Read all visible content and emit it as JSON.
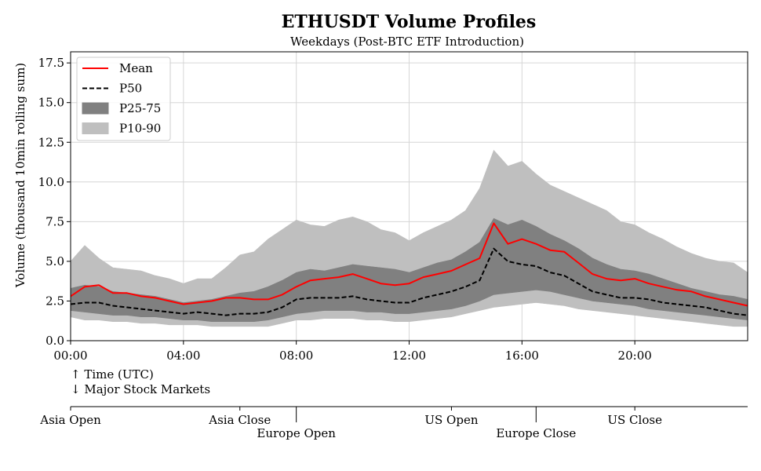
{
  "chart_data": {
    "type": "area",
    "title": "ETHUSDT Volume Profiles",
    "subtitle": "Weekdays (Post-BTC ETF Introduction)",
    "ylabel": "Volume (thousand 10min rolling sum)",
    "xlim": [
      0,
      24
    ],
    "ylim": [
      0,
      18.2
    ],
    "grid": true,
    "legend_placement": "top-left",
    "x_ticks": [
      {
        "x": 0,
        "label": "00:00"
      },
      {
        "x": 4,
        "label": "04:00"
      },
      {
        "x": 8,
        "label": "08:00"
      },
      {
        "x": 12,
        "label": "12:00"
      },
      {
        "x": 16,
        "label": "16:00"
      },
      {
        "x": 20,
        "label": "20:00"
      }
    ],
    "y_ticks": [
      {
        "y": 0,
        "label": "0.0"
      },
      {
        "y": 2.5,
        "label": "2.5"
      },
      {
        "y": 5,
        "label": "5.0"
      },
      {
        "y": 7.5,
        "label": "7.5"
      },
      {
        "y": 10,
        "label": "10.0"
      },
      {
        "y": 12.5,
        "label": "12.5"
      },
      {
        "y": 15,
        "label": "15.0"
      },
      {
        "y": 17.5,
        "label": "17.5"
      }
    ],
    "x_hours": [
      0,
      0.5,
      1,
      1.5,
      2,
      2.5,
      3,
      3.5,
      4,
      4.5,
      5,
      5.5,
      6,
      6.5,
      7,
      7.5,
      8,
      8.5,
      9,
      9.5,
      10,
      10.5,
      11,
      11.5,
      12,
      12.5,
      13,
      13.5,
      14,
      14.5,
      15,
      15.5,
      16,
      16.5,
      17,
      17.5,
      18,
      18.5,
      19,
      19.5,
      20,
      20.5,
      21,
      21.5,
      22,
      22.5,
      23,
      23.5,
      24
    ],
    "series": [
      {
        "name": "P10-90",
        "kind": "band",
        "color": "#bfbfbf",
        "lower": [
          1.5,
          1.3,
          1.3,
          1.2,
          1.2,
          1.1,
          1.1,
          1.0,
          1.0,
          1.0,
          0.9,
          0.9,
          0.9,
          0.9,
          0.9,
          1.1,
          1.3,
          1.3,
          1.4,
          1.4,
          1.4,
          1.3,
          1.3,
          1.2,
          1.2,
          1.3,
          1.4,
          1.5,
          1.7,
          1.9,
          2.1,
          2.2,
          2.3,
          2.4,
          2.3,
          2.2,
          2.0,
          1.9,
          1.8,
          1.7,
          1.6,
          1.5,
          1.4,
          1.3,
          1.2,
          1.1,
          1.0,
          0.9,
          0.9
        ],
        "upper": [
          5.0,
          6.0,
          5.2,
          4.6,
          4.5,
          4.4,
          4.1,
          3.9,
          3.6,
          3.9,
          3.9,
          4.6,
          5.4,
          5.6,
          6.4,
          7.0,
          7.6,
          7.3,
          7.2,
          7.6,
          7.8,
          7.5,
          7.0,
          6.8,
          6.3,
          6.8,
          7.2,
          7.6,
          8.2,
          9.6,
          12.0,
          11.0,
          11.3,
          10.5,
          9.8,
          9.4,
          9.0,
          8.6,
          8.2,
          7.5,
          7.3,
          6.8,
          6.4,
          5.9,
          5.5,
          5.2,
          5.0,
          4.9,
          4.3
        ]
      },
      {
        "name": "P25-75",
        "kind": "band",
        "color": "#808080",
        "lower": [
          1.9,
          1.8,
          1.7,
          1.6,
          1.6,
          1.5,
          1.5,
          1.4,
          1.3,
          1.3,
          1.2,
          1.2,
          1.2,
          1.2,
          1.3,
          1.5,
          1.7,
          1.8,
          1.9,
          1.9,
          1.9,
          1.8,
          1.8,
          1.7,
          1.7,
          1.8,
          1.9,
          2.0,
          2.2,
          2.5,
          2.9,
          3.0,
          3.1,
          3.2,
          3.1,
          2.9,
          2.7,
          2.5,
          2.4,
          2.3,
          2.2,
          2.0,
          1.9,
          1.8,
          1.7,
          1.6,
          1.5,
          1.4,
          1.3
        ],
        "upper": [
          3.3,
          3.5,
          3.4,
          3.1,
          3.0,
          2.9,
          2.8,
          2.6,
          2.4,
          2.5,
          2.6,
          2.8,
          3.0,
          3.1,
          3.4,
          3.8,
          4.3,
          4.5,
          4.4,
          4.6,
          4.8,
          4.7,
          4.6,
          4.5,
          4.3,
          4.6,
          4.9,
          5.1,
          5.6,
          6.2,
          7.7,
          7.3,
          7.6,
          7.2,
          6.7,
          6.3,
          5.8,
          5.2,
          4.8,
          4.5,
          4.4,
          4.2,
          3.9,
          3.6,
          3.3,
          3.1,
          2.9,
          2.8,
          2.6
        ]
      },
      {
        "name": "Mean",
        "kind": "line",
        "color": "#ff0000",
        "style": "solid",
        "values": [
          2.8,
          3.4,
          3.5,
          3.0,
          3.0,
          2.8,
          2.7,
          2.5,
          2.3,
          2.4,
          2.5,
          2.7,
          2.7,
          2.6,
          2.6,
          2.9,
          3.4,
          3.8,
          3.9,
          4.0,
          4.2,
          3.9,
          3.6,
          3.5,
          3.6,
          4.0,
          4.2,
          4.4,
          4.8,
          5.2,
          7.4,
          6.1,
          6.4,
          6.1,
          5.7,
          5.6,
          4.9,
          4.2,
          3.9,
          3.8,
          3.9,
          3.6,
          3.4,
          3.2,
          3.1,
          2.8,
          2.6,
          2.4,
          2.2
        ]
      },
      {
        "name": "P50",
        "kind": "line",
        "color": "#000000",
        "style": "dashed",
        "values": [
          2.3,
          2.4,
          2.4,
          2.2,
          2.1,
          2.0,
          1.9,
          1.8,
          1.7,
          1.8,
          1.7,
          1.6,
          1.7,
          1.7,
          1.8,
          2.1,
          2.6,
          2.7,
          2.7,
          2.7,
          2.8,
          2.6,
          2.5,
          2.4,
          2.4,
          2.7,
          2.9,
          3.1,
          3.4,
          3.8,
          5.8,
          5.0,
          4.8,
          4.7,
          4.3,
          4.1,
          3.6,
          3.1,
          2.9,
          2.7,
          2.7,
          2.6,
          2.4,
          2.3,
          2.2,
          2.1,
          1.9,
          1.7,
          1.6
        ]
      }
    ],
    "markets": {
      "header_line1": "↑ Time (UTC)",
      "header_line2": "↓ Major Stock Markets",
      "events": [
        {
          "label": "Asia Open",
          "x": 0,
          "row": 1
        },
        {
          "label": "Asia Close",
          "x": 6,
          "row": 1
        },
        {
          "label": "Europe Open",
          "x": 8,
          "row": 2
        },
        {
          "label": "US Open",
          "x": 13.5,
          "row": 1
        },
        {
          "label": "Europe Close",
          "x": 16.5,
          "row": 2
        },
        {
          "label": "US Close",
          "x": 20,
          "row": 1
        }
      ]
    }
  }
}
